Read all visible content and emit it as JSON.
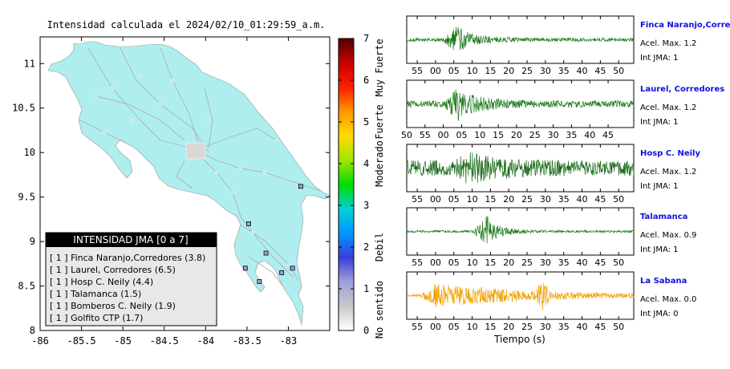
{
  "map": {
    "title": "Intensidad calculada el 2024/02/10_01:29:59_a.m.",
    "xlim": [
      -86,
      -82.5
    ],
    "ylim": [
      8,
      11.3
    ],
    "x_ticks": [
      "-86",
      "-85.5",
      "-85",
      "-84.5",
      "-84",
      "-83.5",
      "-83"
    ],
    "x_tick_values": [
      -86,
      -85.5,
      -85,
      -84.5,
      -84,
      -83.5,
      -83
    ],
    "y_ticks": [
      "8",
      "8.5",
      "9",
      "9.5",
      "10",
      "10.5",
      "11"
    ],
    "y_tick_values": [
      8,
      8.5,
      9,
      9.5,
      10,
      10.5,
      11
    ],
    "land_color": "#aeeeee",
    "stations": [
      {
        "lon": -82.85,
        "lat": 9.62
      },
      {
        "lon": -83.48,
        "lat": 9.2
      },
      {
        "lon": -83.27,
        "lat": 8.87
      },
      {
        "lon": -82.95,
        "lat": 8.7
      },
      {
        "lon": -83.52,
        "lat": 8.7
      },
      {
        "lon": -83.08,
        "lat": 8.65
      },
      {
        "lon": -83.35,
        "lat": 8.55
      }
    ],
    "legend": {
      "header": "INTENSIDAD JMA [0 a 7]",
      "items": [
        "[ 1 ]  Finca Naranjo,Corredores (3.8)",
        "[ 1 ]  Laurel, Corredores (6.5)",
        "[ 1 ]  Hosp C. Neily (4.4)",
        "[ 1 ]  Talamanca (1.5)",
        "[ 1 ]  Bomberos C. Neily (1.9)",
        "[ 1 ]  Golfito CTP (1.7)"
      ]
    }
  },
  "colorbar": {
    "ticks": [
      "0",
      "1",
      "2",
      "3",
      "4",
      "5",
      "6",
      "7"
    ],
    "labels": [
      {
        "text": "No sentido",
        "at": 0.5
      },
      {
        "text": "Debil",
        "at": 2
      },
      {
        "text": "Moderado",
        "at": 4
      },
      {
        "text": "Fuerte",
        "at": 5
      },
      {
        "text": "Muy Fuerte",
        "at": 6.3
      }
    ],
    "stops": [
      "#ffffff",
      "#c8c8c8",
      "#a0a0dc",
      "#3c3cdc",
      "#0096ff",
      "#00d2d2",
      "#00dc00",
      "#a0e600",
      "#ffdc00",
      "#ff9600",
      "#ff1e00",
      "#c80000",
      "#500000"
    ]
  },
  "seismograms": {
    "xlabel": "Tiempo (s)",
    "traces": [
      {
        "name": "Finca Naranjo,Corredor",
        "acel": "Acel. Max. 1.2",
        "jma": "Int JMA: 1",
        "color": "#1a7a1a",
        "ticks": [
          "55",
          "00",
          "05",
          "10",
          "15",
          "20",
          "25",
          "30",
          "35",
          "40",
          "45",
          "50"
        ],
        "start_offset": 0.25,
        "burst": 0.2,
        "amp": 0.75,
        "noise": 0.08,
        "decay": 3
      },
      {
        "name": "Laurel, Corredores",
        "acel": "Acel. Max. 1.2",
        "jma": "Int JMA: 1",
        "color": "#1a7a1a",
        "ticks": [
          "50",
          "55",
          "00",
          "05",
          "10",
          "15",
          "20",
          "25",
          "30",
          "35",
          "40",
          "45"
        ],
        "start_offset": 0.0,
        "burst": 0.2,
        "amp": 0.85,
        "noise": 0.15,
        "decay": 2.5
      },
      {
        "name": "Hosp C. Neily",
        "acel": "Acel. Max. 1.2",
        "jma": "Int JMA: 1",
        "color": "#1a6a1a",
        "ticks": [
          "55",
          "00",
          "05",
          "10",
          "15",
          "20",
          "25",
          "30",
          "35",
          "40",
          "45",
          "50"
        ],
        "start_offset": 0.25,
        "burst": 0.25,
        "amp": 0.85,
        "noise": 0.35,
        "decay": 1.8
      },
      {
        "name": "Talamanca",
        "acel": "Acel. Max. 0.9",
        "jma": "Int JMA: 1",
        "color": "#1a7a1a",
        "ticks": [
          "55",
          "00",
          "05",
          "10",
          "15",
          "20",
          "25",
          "30",
          "35",
          "40",
          "45",
          "50"
        ],
        "start_offset": 0.25,
        "burst": 0.33,
        "amp": 0.8,
        "noise": 0.05,
        "decay": 4
      },
      {
        "name": "La Sabana",
        "acel": "Acel. Max. 0.0",
        "jma": "Int JMA: 0",
        "color": "#f0a000",
        "ticks": [
          "55",
          "00",
          "05",
          "10",
          "15",
          "20",
          "25",
          "30",
          "35",
          "40",
          "45",
          "50"
        ],
        "start_offset": 0.25,
        "burst": 0.1,
        "amp": 0.6,
        "noise": 0.05,
        "decay": 0.6
      }
    ]
  }
}
